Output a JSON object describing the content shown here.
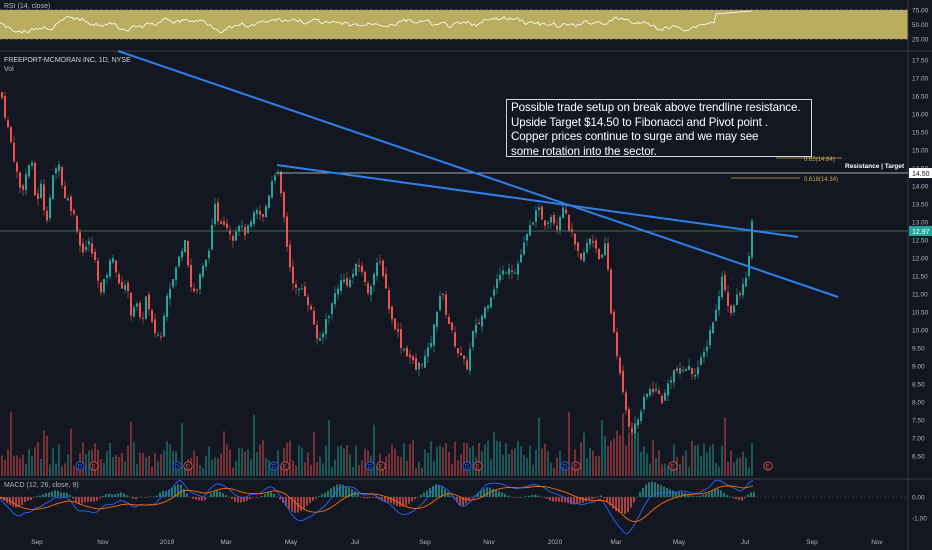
{
  "chart": {
    "symbol_title": "FREEPORT-MCMORAN INC, 1D, NYSE",
    "volume_label": "Vol",
    "rsi_label": "RSI (14, close)",
    "macd_label": "MACD (12, 26, close, 9)",
    "annotation": "Possible trade setup on break above trendline resistance.\nUpside Target $14.50 to Fibonacci and Pivot point .\nCopper prices continue to surge and we may see\nsome rotation into the sector.",
    "resistance_label": "Resistance | Target",
    "fib_650_label": "0.65(14.84)",
    "fib_618_label": "0.618(14.34)",
    "last_price_tag": "12.97",
    "target_price_tag": "14.50",
    "earnings_marker": "E",
    "dividend_marker": "D"
  },
  "chart_data": {
    "type": "candlestick",
    "price_axis_ticks": [
      17.5,
      17.0,
      16.5,
      16.0,
      15.5,
      15.0,
      14.5,
      14.0,
      13.5,
      13.0,
      12.5,
      12.0,
      11.5,
      11.0,
      10.5,
      10.0,
      9.5,
      9.0,
      8.5,
      8.0,
      7.5,
      7.0,
      6.5
    ],
    "price_axis_labels": [
      "17.50",
      "17.00",
      "16.50",
      "16.00",
      "15.50",
      "15.00",
      "14.50",
      "14.00",
      "13.50",
      "13.00",
      "12.50",
      "12.00",
      "11.50",
      "11.00",
      "10.50",
      "10.00",
      "9.50",
      "9.00",
      "8.50",
      "8.00",
      "7.50",
      "7.00",
      "6.50"
    ],
    "rsi_axis": [
      75,
      50,
      25
    ],
    "rsi_axis_labels": [
      "75.00",
      "50.00",
      "25.00"
    ],
    "macd_axis": [
      0.0,
      -1.0
    ],
    "macd_axis_labels": [
      "0.00",
      "-1.00"
    ],
    "x_axis_labels": [
      "Sep",
      "Nov",
      "2019",
      "Mar",
      "May",
      "Jul",
      "Sep",
      "Nov",
      "2020",
      "Mar",
      "May",
      "Jul",
      "Sep",
      "Nov"
    ],
    "close_path": [
      [
        0,
        16.6
      ],
      [
        4,
        16.0
      ],
      [
        10,
        15.2
      ],
      [
        15,
        14.5
      ],
      [
        20,
        13.8
      ],
      [
        25,
        14.3
      ],
      [
        30,
        14.8
      ],
      [
        35,
        13.5
      ],
      [
        40,
        14.0
      ],
      [
        45,
        13.0
      ],
      [
        52,
        14.2
      ],
      [
        58,
        14.7
      ],
      [
        62,
        13.8
      ],
      [
        68,
        13.6
      ],
      [
        75,
        13.0
      ],
      [
        80,
        12.2
      ],
      [
        88,
        12.4
      ],
      [
        95,
        11.8
      ],
      [
        100,
        11.0
      ],
      [
        106,
        11.6
      ],
      [
        112,
        12.1
      ],
      [
        118,
        11.2
      ],
      [
        125,
        11.3
      ],
      [
        130,
        10.5
      ],
      [
        135,
        10.8
      ],
      [
        140,
        10.1
      ],
      [
        145,
        10.9
      ],
      [
        152,
        10.0
      ],
      [
        160,
        9.8
      ],
      [
        165,
        11.0
      ],
      [
        172,
        11.4
      ],
      [
        178,
        12.0
      ],
      [
        184,
        12.6
      ],
      [
        190,
        11.2
      ],
      [
        195,
        11.0
      ],
      [
        200,
        11.6
      ],
      [
        205,
        11.9
      ],
      [
        210,
        12.6
      ],
      [
        214,
        13.4
      ],
      [
        218,
        13.0
      ],
      [
        222,
        13.1
      ],
      [
        228,
        12.8
      ],
      [
        232,
        12.6
      ],
      [
        238,
        13.0
      ],
      [
        242,
        12.7
      ],
      [
        248,
        12.8
      ],
      [
        255,
        13.3
      ],
      [
        262,
        13.1
      ],
      [
        268,
        13.8
      ],
      [
        272,
        14.3
      ],
      [
        276,
        14.5
      ],
      [
        279,
        13.9
      ],
      [
        283,
        13.1
      ],
      [
        287,
        12.1
      ],
      [
        290,
        11.6
      ],
      [
        296,
        11.0
      ],
      [
        302,
        11.2
      ],
      [
        308,
        10.7
      ],
      [
        312,
        10.3
      ],
      [
        316,
        9.8
      ],
      [
        320,
        9.6
      ],
      [
        325,
        10.3
      ],
      [
        330,
        10.6
      ],
      [
        336,
        11.2
      ],
      [
        342,
        11.4
      ],
      [
        348,
        11.3
      ],
      [
        354,
        11.7
      ],
      [
        360,
        11.8
      ],
      [
        366,
        11.0
      ],
      [
        372,
        11.5
      ],
      [
        378,
        11.9
      ],
      [
        382,
        11.6
      ],
      [
        386,
        11.0
      ],
      [
        390,
        10.3
      ],
      [
        395,
        10.1
      ],
      [
        400,
        9.6
      ],
      [
        405,
        9.4
      ],
      [
        410,
        9.2
      ],
      [
        415,
        8.9
      ],
      [
        420,
        9.1
      ],
      [
        426,
        9.3
      ],
      [
        432,
        9.9
      ],
      [
        436,
        10.6
      ],
      [
        440,
        11.1
      ],
      [
        446,
        10.4
      ],
      [
        452,
        9.8
      ],
      [
        457,
        9.4
      ],
      [
        462,
        9.1
      ],
      [
        466,
        9.0
      ],
      [
        472,
        9.9
      ],
      [
        478,
        10.2
      ],
      [
        484,
        10.6
      ],
      [
        490,
        11.0
      ],
      [
        496,
        11.4
      ],
      [
        502,
        11.6
      ],
      [
        508,
        11.8
      ],
      [
        514,
        11.6
      ],
      [
        520,
        12.1
      ],
      [
        526,
        12.6
      ],
      [
        532,
        13.1
      ],
      [
        538,
        13.3
      ],
      [
        544,
        13.0
      ],
      [
        550,
        13.2
      ],
      [
        556,
        12.9
      ],
      [
        562,
        13.5
      ],
      [
        566,
        13.0
      ],
      [
        570,
        12.7
      ],
      [
        575,
        12.2
      ],
      [
        580,
        11.9
      ],
      [
        585,
        12.3
      ],
      [
        590,
        12.6
      ],
      [
        595,
        12.3
      ],
      [
        600,
        11.9
      ],
      [
        605,
        12.4
      ],
      [
        610,
        10.5
      ],
      [
        615,
        9.6
      ],
      [
        620,
        8.5
      ],
      [
        624,
        7.9
      ],
      [
        628,
        7.4
      ],
      [
        632,
        7.2
      ],
      [
        638,
        7.6
      ],
      [
        644,
        8.1
      ],
      [
        650,
        8.4
      ],
      [
        656,
        8.3
      ],
      [
        662,
        8.0
      ],
      [
        668,
        8.6
      ],
      [
        674,
        8.9
      ],
      [
        680,
        8.8
      ],
      [
        686,
        9.0
      ],
      [
        692,
        8.8
      ],
      [
        698,
        9.0
      ],
      [
        704,
        9.4
      ],
      [
        710,
        10.1
      ],
      [
        716,
        10.6
      ],
      [
        720,
        11.5
      ],
      [
        724,
        11.2
      ],
      [
        728,
        10.5
      ],
      [
        732,
        10.6
      ],
      [
        736,
        10.9
      ],
      [
        740,
        11.0
      ],
      [
        744,
        11.4
      ],
      [
        748,
        12.0
      ],
      [
        751,
        12.9
      ],
      [
        753,
        12.97
      ]
    ]
  }
}
